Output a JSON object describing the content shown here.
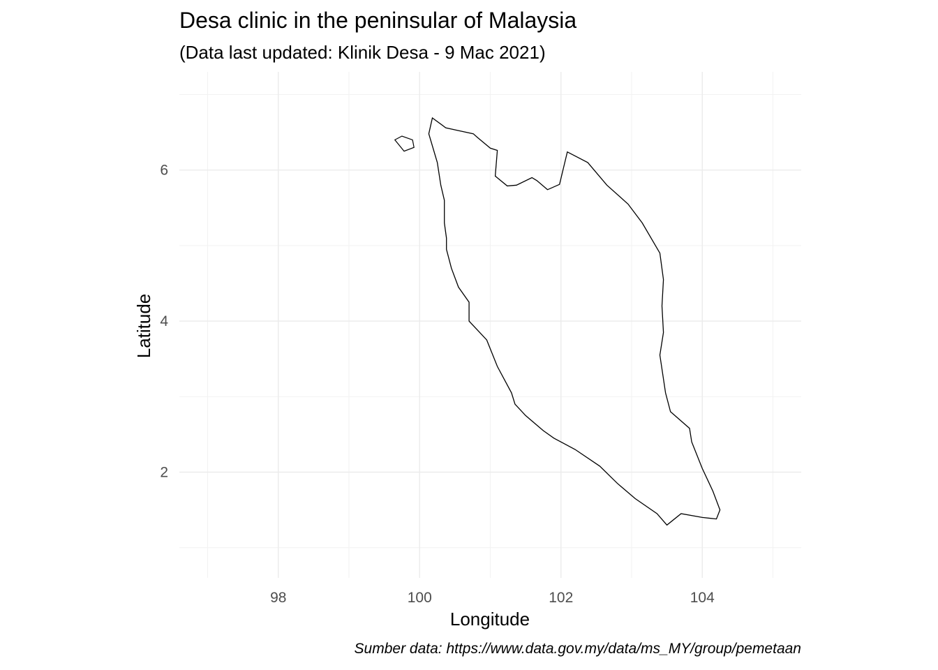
{
  "chart_data": {
    "type": "scatter",
    "title": "Desa clinic in the peninsular of Malaysia",
    "subtitle": "(Data last updated: Klinik Desa - 9 Mac 2021)",
    "xlabel": "Longitude",
    "ylabel": "Latitude",
    "caption": "Sumber data: https://www.data.gov.my/data/ms_MY/group/pemetaan",
    "xlim": [
      96.6,
      105.4
    ],
    "ylim": [
      0.6,
      7.3
    ],
    "x_ticks": [
      98,
      100,
      102,
      104
    ],
    "y_ticks": [
      2,
      4,
      6
    ],
    "x_tick_labels": [
      "98",
      "100",
      "102",
      "104"
    ],
    "y_tick_labels": [
      "2",
      "4",
      "6"
    ],
    "grid": true,
    "legend": "none",
    "point_color": "#000000",
    "outline_color": "#000000",
    "outline": [
      [
        100.13,
        6.48
      ],
      [
        100.18,
        6.69
      ],
      [
        100.37,
        6.56
      ],
      [
        100.56,
        6.52
      ],
      [
        100.76,
        6.48
      ],
      [
        100.82,
        6.43
      ],
      [
        101.0,
        6.29
      ],
      [
        101.1,
        6.26
      ],
      [
        101.07,
        5.92
      ],
      [
        101.24,
        5.79
      ],
      [
        101.37,
        5.8
      ],
      [
        101.59,
        5.9
      ],
      [
        101.66,
        5.86
      ],
      [
        101.81,
        5.74
      ],
      [
        101.98,
        5.81
      ],
      [
        102.09,
        6.24
      ],
      [
        102.38,
        6.1
      ],
      [
        102.65,
        5.8
      ],
      [
        102.95,
        5.55
      ],
      [
        103.15,
        5.3
      ],
      [
        103.4,
        4.9
      ],
      [
        103.45,
        4.55
      ],
      [
        103.43,
        4.2
      ],
      [
        103.45,
        3.85
      ],
      [
        103.4,
        3.55
      ],
      [
        103.48,
        3.05
      ],
      [
        103.55,
        2.8
      ],
      [
        103.82,
        2.58
      ],
      [
        103.85,
        2.4
      ],
      [
        104.0,
        2.05
      ],
      [
        104.15,
        1.75
      ],
      [
        104.25,
        1.5
      ],
      [
        104.2,
        1.38
      ],
      [
        104.0,
        1.4
      ],
      [
        103.7,
        1.45
      ],
      [
        103.5,
        1.3
      ],
      [
        103.36,
        1.45
      ],
      [
        103.05,
        1.65
      ],
      [
        102.8,
        1.85
      ],
      [
        102.55,
        2.08
      ],
      [
        102.2,
        2.3
      ],
      [
        101.9,
        2.45
      ],
      [
        101.75,
        2.55
      ],
      [
        101.5,
        2.75
      ],
      [
        101.35,
        2.9
      ],
      [
        101.3,
        3.05
      ],
      [
        101.1,
        3.4
      ],
      [
        100.95,
        3.75
      ],
      [
        100.7,
        4.0
      ],
      [
        100.7,
        4.25
      ],
      [
        100.55,
        4.45
      ],
      [
        100.45,
        4.7
      ],
      [
        100.38,
        4.95
      ],
      [
        100.38,
        5.1
      ],
      [
        100.35,
        5.3
      ],
      [
        100.35,
        5.6
      ],
      [
        100.3,
        5.8
      ],
      [
        100.25,
        6.1
      ],
      [
        100.13,
        6.48
      ]
    ],
    "island_outline": [
      [
        99.65,
        6.4
      ],
      [
        99.75,
        6.45
      ],
      [
        99.9,
        6.4
      ],
      [
        99.92,
        6.3
      ],
      [
        99.78,
        6.25
      ],
      [
        99.65,
        6.4
      ]
    ]
  }
}
